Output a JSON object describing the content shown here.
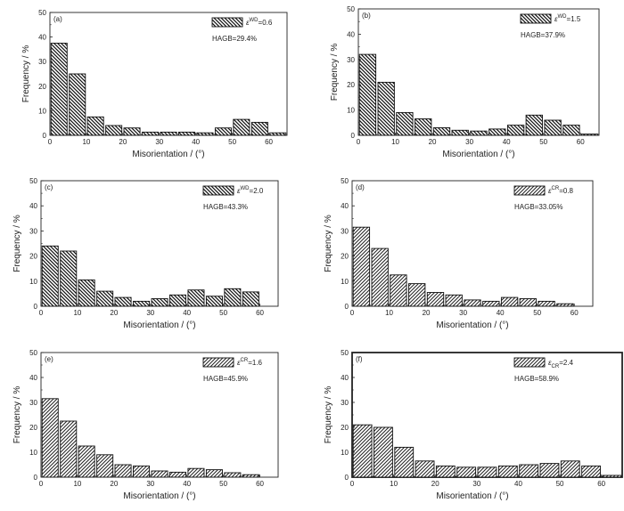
{
  "charts": [
    {
      "panel": "(a)",
      "legend_label": "ε",
      "legend_sup": "WD",
      "legend_value": "=0.6",
      "hagb": "HAGB=29.4%",
      "hatch": "back",
      "outer_border": false
    },
    {
      "panel": "(b)",
      "legend_label": "ε",
      "legend_sup": "WD",
      "legend_value": "=1.5",
      "hagb": "HAGB=37.9%",
      "hatch": "back",
      "outer_border": false
    },
    {
      "panel": "(c)",
      "legend_label": "ε",
      "legend_sup": "WD",
      "legend_value": "=2.0",
      "hagb": "HAGB=43.3%",
      "hatch": "back",
      "outer_border": false
    },
    {
      "panel": "(d)",
      "legend_label": "ε",
      "legend_sup": "CR",
      "legend_value": "=0.8",
      "hagb": "HAGB=33.05%",
      "hatch": "fwd",
      "outer_border": false
    },
    {
      "panel": "(e)",
      "legend_label": "ε",
      "legend_sup": "CR",
      "legend_value": "=1.6",
      "hagb": "HAGB=45.9%",
      "hatch": "fwd",
      "outer_border": false
    },
    {
      "panel": "(f)",
      "legend_label": "ε",
      "legend_sub": "CR",
      "legend_value": "=2.4",
      "hagb": "HAGB=58.9%",
      "hatch": "fwd",
      "outer_border": true
    }
  ],
  "chart_data": [
    {
      "type": "bar",
      "xlabel": "Misorientation / (°)",
      "ylabel": "Frequency / %",
      "xlim": [
        0,
        65
      ],
      "ylim": [
        0,
        50
      ],
      "xticks": [
        0,
        10,
        20,
        30,
        40,
        50,
        60
      ],
      "yticks": [
        0,
        10,
        20,
        30,
        40,
        50
      ],
      "bin_width": 5,
      "x": [
        2.5,
        7.5,
        12.5,
        17.5,
        22.5,
        27.5,
        32.5,
        37.5,
        42.5,
        47.5,
        52.5,
        57.5,
        62.5
      ],
      "values": [
        37.5,
        25,
        7.5,
        4,
        3,
        1.3,
        1.3,
        1.3,
        1,
        3,
        6.5,
        5.3,
        1
      ]
    },
    {
      "type": "bar",
      "xlabel": "Misorientation / (°)",
      "ylabel": "Frequency / %",
      "xlim": [
        0,
        65
      ],
      "ylim": [
        0,
        50
      ],
      "xticks": [
        0,
        10,
        20,
        30,
        40,
        50,
        60
      ],
      "yticks": [
        0,
        10,
        20,
        30,
        40,
        50
      ],
      "bin_width": 5,
      "x": [
        2.5,
        7.5,
        12.5,
        17.5,
        22.5,
        27.5,
        32.5,
        37.5,
        42.5,
        47.5,
        52.5,
        57.5,
        62.5
      ],
      "values": [
        32,
        21,
        9,
        6.5,
        3,
        2,
        1.7,
        2.5,
        4,
        8,
        6,
        4,
        0.5
      ]
    },
    {
      "type": "bar",
      "xlabel": "Misorientation / (°)",
      "ylabel": "Frequency / %",
      "xlim": [
        0,
        65
      ],
      "ylim": [
        0,
        50
      ],
      "xticks": [
        0,
        10,
        20,
        30,
        40,
        50,
        60
      ],
      "yticks": [
        0,
        10,
        20,
        30,
        40,
        50
      ],
      "bin_width": 5,
      "x": [
        2.5,
        7.5,
        12.5,
        17.5,
        22.5,
        27.5,
        32.5,
        37.5,
        42.5,
        47.5,
        52.5,
        57.5
      ],
      "values": [
        24,
        22,
        10.5,
        6,
        3.5,
        2,
        3,
        4.5,
        6.5,
        4,
        7,
        5.7
      ]
    },
    {
      "type": "bar",
      "xlabel": "Misorientation / (°)",
      "ylabel": "Frequency / %",
      "xlim": [
        0,
        65
      ],
      "ylim": [
        0,
        50
      ],
      "xticks": [
        0,
        10,
        20,
        30,
        40,
        50,
        60
      ],
      "yticks": [
        0,
        10,
        20,
        30,
        40,
        50
      ],
      "bin_width": 5,
      "x": [
        2.5,
        7.5,
        12.5,
        17.5,
        22.5,
        27.5,
        32.5,
        37.5,
        42.5,
        47.5,
        52.5,
        57.5
      ],
      "values": [
        31.5,
        23,
        12.5,
        9,
        5.5,
        4.5,
        2.5,
        2,
        3.5,
        3,
        2,
        1
      ]
    },
    {
      "type": "bar",
      "xlabel": "Misorientation / (°)",
      "ylabel": "Frequency / %",
      "xlim": [
        0,
        65
      ],
      "ylim": [
        0,
        50
      ],
      "xticks": [
        0,
        10,
        20,
        30,
        40,
        50,
        60
      ],
      "yticks": [
        0,
        10,
        20,
        30,
        40,
        50
      ],
      "bin_width": 5,
      "x": [
        2.5,
        7.5,
        12.5,
        17.5,
        22.5,
        27.5,
        32.5,
        37.5,
        42.5,
        47.5,
        52.5,
        57.5
      ],
      "values": [
        31.5,
        22.5,
        12.5,
        9,
        5,
        4.5,
        2.5,
        2,
        3.5,
        3,
        1.8,
        1
      ]
    },
    {
      "type": "bar",
      "xlabel": "Misorientation / (°)",
      "ylabel": "Frequency / %",
      "xlim": [
        0,
        65
      ],
      "ylim": [
        0,
        50
      ],
      "xticks": [
        0,
        10,
        20,
        30,
        40,
        50,
        60
      ],
      "yticks": [
        0,
        10,
        20,
        30,
        40,
        50
      ],
      "bin_width": 5,
      "x": [
        2.5,
        7.5,
        12.5,
        17.5,
        22.5,
        27.5,
        32.5,
        37.5,
        42.5,
        47.5,
        52.5,
        57.5,
        62.5
      ],
      "values": [
        21,
        20,
        12,
        6.5,
        4.5,
        4,
        4,
        4.5,
        5,
        5.5,
        6.5,
        4.5,
        0.7
      ]
    }
  ]
}
